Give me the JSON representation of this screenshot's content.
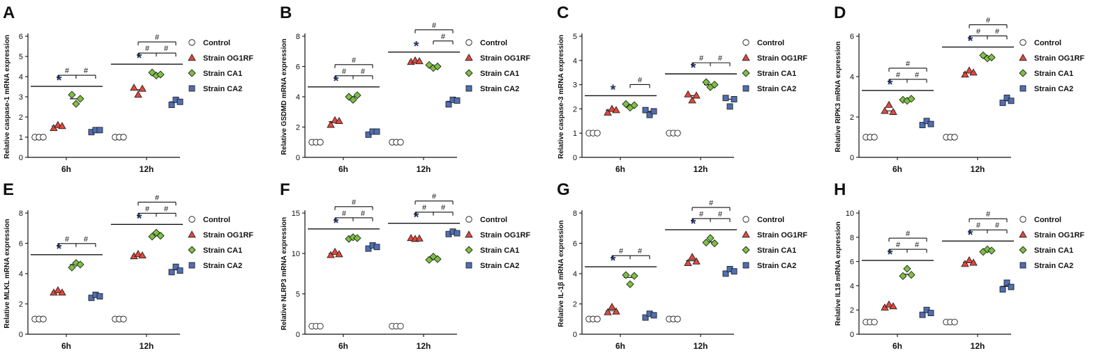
{
  "figure": {
    "legend": [
      {
        "name": "Control",
        "marker": "circle",
        "color": "#ffffff"
      },
      {
        "name": "Strain OG1RF",
        "marker": "triangle",
        "color": "#e8463c"
      },
      {
        "name": "Strain CA1",
        "marker": "diamond",
        "color": "#7cc242"
      },
      {
        "name": "Strain CA2",
        "marker": "square",
        "color": "#4f6fb3"
      }
    ],
    "significance_symbols": {
      "vs_control": "*",
      "vs_og1rf": "#"
    }
  },
  "chart_data": [
    {
      "type": "scatter",
      "panel_label": "A",
      "ylabel": "Relative caspase-1 mRNA expression",
      "categories": [
        "6h",
        "12h"
      ],
      "ylim": [
        0,
        6
      ],
      "yticks": [
        0,
        1,
        2,
        3,
        4,
        5,
        6
      ],
      "series": [
        {
          "name": "Control",
          "values": [
            [
              1,
              1,
              1
            ],
            [
              1,
              1,
              1
            ]
          ],
          "mean": [
            1,
            1
          ]
        },
        {
          "name": "Strain OG1RF",
          "values": [
            [
              1.45,
              1.6,
              1.55
            ],
            [
              3.45,
              3.1,
              3.4
            ]
          ],
          "mean": [
            1.55,
            3.35
          ]
        },
        {
          "name": "Strain CA1",
          "values": [
            [
              3.1,
              2.65,
              2.9
            ],
            [
              4.2,
              4.05,
              4.1
            ]
          ],
          "mean": [
            2.9,
            4.1
          ]
        },
        {
          "name": "Strain CA2",
          "values": [
            [
              1.25,
              1.35,
              1.35
            ],
            [
              2.6,
              2.85,
              2.75
            ]
          ],
          "mean": [
            1.3,
            2.75
          ]
        }
      ],
      "annotations": [
        {
          "group": 0,
          "star": true,
          "hashes": 2,
          "top": false
        },
        {
          "group": 1,
          "star": true,
          "hashes": 2,
          "top": true
        }
      ]
    },
    {
      "type": "scatter",
      "panel_label": "B",
      "ylabel": "Relative GSDMD mRNA expression",
      "categories": [
        "6h",
        "12h"
      ],
      "ylim": [
        0,
        8
      ],
      "yticks": [
        0,
        2,
        4,
        6,
        8
      ],
      "series": [
        {
          "name": "Control",
          "values": [
            [
              1,
              1,
              1
            ],
            [
              1,
              1,
              1
            ]
          ],
          "mean": [
            1,
            1
          ]
        },
        {
          "name": "Strain OG1RF",
          "values": [
            [
              2.15,
              2.45,
              2.4
            ],
            [
              6.3,
              6.4,
              6.35
            ]
          ],
          "mean": [
            2.35,
            6.35
          ]
        },
        {
          "name": "Strain CA1",
          "values": [
            [
              4.0,
              3.8,
              4.1
            ],
            [
              6.1,
              5.9,
              6.0
            ]
          ],
          "mean": [
            4.0,
            6.0
          ]
        },
        {
          "name": "Strain CA2",
          "values": [
            [
              1.5,
              1.7,
              1.7
            ],
            [
              3.5,
              3.8,
              3.75
            ]
          ],
          "mean": [
            1.65,
            3.7
          ]
        }
      ],
      "annotations": [
        {
          "group": 0,
          "star": true,
          "hashes": 2,
          "top": true
        },
        {
          "group": 1,
          "star": true,
          "hashes": 1,
          "top": true
        }
      ]
    },
    {
      "type": "scatter",
      "panel_label": "C",
      "ylabel": "Relative caspase-3 mRNA expression",
      "categories": [
        "6h",
        "12h"
      ],
      "ylim": [
        0,
        5
      ],
      "yticks": [
        0,
        1,
        2,
        3,
        4,
        5
      ],
      "series": [
        {
          "name": "Control",
          "values": [
            [
              1,
              1,
              1
            ],
            [
              1,
              1,
              1
            ]
          ],
          "mean": [
            1,
            1
          ]
        },
        {
          "name": "Strain OG1RF",
          "values": [
            [
              1.85,
              2.0,
              1.95
            ],
            [
              2.6,
              2.35,
              2.55
            ]
          ],
          "mean": [
            1.95,
            2.55
          ]
        },
        {
          "name": "Strain CA1",
          "values": [
            [
              2.2,
              2.05,
              2.15
            ],
            [
              3.1,
              2.9,
              3.0
            ]
          ],
          "mean": [
            2.15,
            3.0
          ]
        },
        {
          "name": "Strain CA2",
          "values": [
            [
              1.95,
              1.75,
              1.9
            ],
            [
              2.45,
              2.1,
              2.4
            ]
          ],
          "mean": [
            1.9,
            2.4
          ]
        }
      ],
      "annotations": [
        {
          "group": 0,
          "star": true,
          "hashes": 1,
          "top": false
        },
        {
          "group": 1,
          "star": true,
          "hashes": 2,
          "top": false
        }
      ]
    },
    {
      "type": "scatter",
      "panel_label": "D",
      "ylabel": "Relative RIPK3 mRNA expression",
      "categories": [
        "6h",
        "12h"
      ],
      "ylim": [
        0,
        6
      ],
      "yticks": [
        0,
        2,
        4,
        6
      ],
      "series": [
        {
          "name": "Control",
          "values": [
            [
              1,
              1,
              1
            ],
            [
              1,
              1,
              1
            ]
          ],
          "mean": [
            1,
            1
          ]
        },
        {
          "name": "Strain OG1RF",
          "values": [
            [
              2.3,
              2.6,
              2.25
            ],
            [
              4.1,
              4.3,
              4.2
            ]
          ],
          "mean": [
            2.3,
            4.2
          ]
        },
        {
          "name": "Strain CA1",
          "values": [
            [
              2.85,
              2.8,
              2.9
            ],
            [
              5.05,
              4.9,
              4.95
            ]
          ],
          "mean": [
            2.85,
            4.95
          ]
        },
        {
          "name": "Strain CA2",
          "values": [
            [
              1.6,
              1.8,
              1.65
            ],
            [
              2.7,
              2.95,
              2.8
            ]
          ],
          "mean": [
            1.7,
            2.8
          ]
        }
      ],
      "annotations": [
        {
          "group": 0,
          "star": true,
          "hashes": 2,
          "top": true
        },
        {
          "group": 1,
          "star": true,
          "hashes": 2,
          "top": true
        }
      ]
    },
    {
      "type": "scatter",
      "panel_label": "E",
      "ylabel": "Relative MLKL mRNA expression",
      "categories": [
        "6h",
        "12h"
      ],
      "ylim": [
        0,
        8
      ],
      "yticks": [
        0,
        2,
        4,
        6,
        8
      ],
      "series": [
        {
          "name": "Control",
          "values": [
            [
              1,
              1,
              1
            ],
            [
              1,
              1,
              1
            ]
          ],
          "mean": [
            1,
            1
          ]
        },
        {
          "name": "Strain OG1RF",
          "values": [
            [
              2.75,
              2.9,
              2.75
            ],
            [
              5.15,
              5.3,
              5.2
            ]
          ],
          "mean": [
            2.8,
            5.2
          ]
        },
        {
          "name": "Strain CA1",
          "values": [
            [
              4.4,
              4.7,
              4.6
            ],
            [
              6.45,
              6.7,
              6.5
            ]
          ],
          "mean": [
            4.6,
            6.55
          ]
        },
        {
          "name": "Strain CA2",
          "values": [
            [
              2.4,
              2.6,
              2.5
            ],
            [
              4.1,
              4.45,
              4.2
            ]
          ],
          "mean": [
            2.5,
            4.25
          ]
        }
      ],
      "annotations": [
        {
          "group": 0,
          "star": true,
          "hashes": 2,
          "top": false
        },
        {
          "group": 1,
          "star": true,
          "hashes": 2,
          "top": true
        }
      ]
    },
    {
      "type": "scatter",
      "panel_label": "F",
      "ylabel": "Relative NLRP3 mRNA expression",
      "categories": [
        "6h",
        "12h"
      ],
      "ylim": [
        0,
        15
      ],
      "yticks": [
        0,
        5,
        10,
        15
      ],
      "series": [
        {
          "name": "Control",
          "values": [
            [
              1,
              1,
              1
            ],
            [
              1,
              1,
              1
            ]
          ],
          "mean": [
            1,
            1
          ]
        },
        {
          "name": "Strain OG1RF",
          "values": [
            [
              9.8,
              10.2,
              9.9
            ],
            [
              11.9,
              11.8,
              11.85
            ]
          ],
          "mean": [
            10.0,
            11.85
          ]
        },
        {
          "name": "Strain CA1",
          "values": [
            [
              11.8,
              12.0,
              11.9
            ],
            [
              9.2,
              9.6,
              9.3
            ]
          ],
          "mean": [
            11.9,
            9.4
          ]
        },
        {
          "name": "Strain CA2",
          "values": [
            [
              10.6,
              11.0,
              10.8
            ],
            [
              12.4,
              12.7,
              12.5
            ]
          ],
          "mean": [
            10.8,
            12.55
          ]
        }
      ],
      "annotations": [
        {
          "group": 0,
          "star": true,
          "hashes": 2,
          "top": true
        },
        {
          "group": 1,
          "star": true,
          "hashes": 2,
          "top": true
        }
      ]
    },
    {
      "type": "scatter",
      "panel_label": "G",
      "ylabel": "Relative IL-1β mRNA expression",
      "categories": [
        "6h",
        "12h"
      ],
      "ylim": [
        0,
        8
      ],
      "yticks": [
        0,
        2,
        4,
        6,
        8
      ],
      "series": [
        {
          "name": "Control",
          "values": [
            [
              1,
              1,
              1
            ],
            [
              1,
              1,
              1
            ]
          ],
          "mean": [
            1,
            1
          ]
        },
        {
          "name": "Strain OG1RF",
          "values": [
            [
              1.45,
              1.8,
              1.5
            ],
            [
              4.7,
              5.1,
              4.8
            ]
          ],
          "mean": [
            1.55,
            4.85
          ]
        },
        {
          "name": "Strain CA1",
          "values": [
            [
              3.9,
              3.3,
              3.85
            ],
            [
              6.05,
              6.35,
              6.0
            ]
          ],
          "mean": [
            3.75,
            6.1
          ]
        },
        {
          "name": "Strain CA2",
          "values": [
            [
              1.1,
              1.35,
              1.25
            ],
            [
              4.0,
              4.3,
              4.15
            ]
          ],
          "mean": [
            1.25,
            4.15
          ]
        }
      ],
      "annotations": [
        {
          "group": 0,
          "star": true,
          "hashes": 2,
          "top": false
        },
        {
          "group": 1,
          "star": true,
          "hashes": 2,
          "top": true
        }
      ]
    },
    {
      "type": "scatter",
      "panel_label": "H",
      "ylabel": "Relative IL18 mRNA expression",
      "categories": [
        "6h",
        "12h"
      ],
      "ylim": [
        0,
        10
      ],
      "yticks": [
        0,
        2,
        4,
        6,
        8,
        10
      ],
      "series": [
        {
          "name": "Control",
          "values": [
            [
              1,
              1,
              1
            ],
            [
              1,
              1,
              1
            ]
          ],
          "mean": [
            1,
            1
          ]
        },
        {
          "name": "Strain OG1RF",
          "values": [
            [
              2.2,
              2.45,
              2.3
            ],
            [
              5.8,
              6.1,
              5.9
            ]
          ],
          "mean": [
            2.3,
            5.95
          ]
        },
        {
          "name": "Strain CA1",
          "values": [
            [
              4.8,
              5.4,
              4.9
            ],
            [
              6.8,
              7.0,
              6.9
            ]
          ],
          "mean": [
            4.95,
            6.9
          ]
        },
        {
          "name": "Strain CA2",
          "values": [
            [
              1.6,
              2.0,
              1.75
            ],
            [
              3.7,
              4.25,
              3.9
            ]
          ],
          "mean": [
            1.8,
            3.95
          ]
        }
      ],
      "annotations": [
        {
          "group": 0,
          "star": true,
          "hashes": 2,
          "top": true
        },
        {
          "group": 1,
          "star": true,
          "hashes": 2,
          "top": true
        }
      ]
    }
  ]
}
